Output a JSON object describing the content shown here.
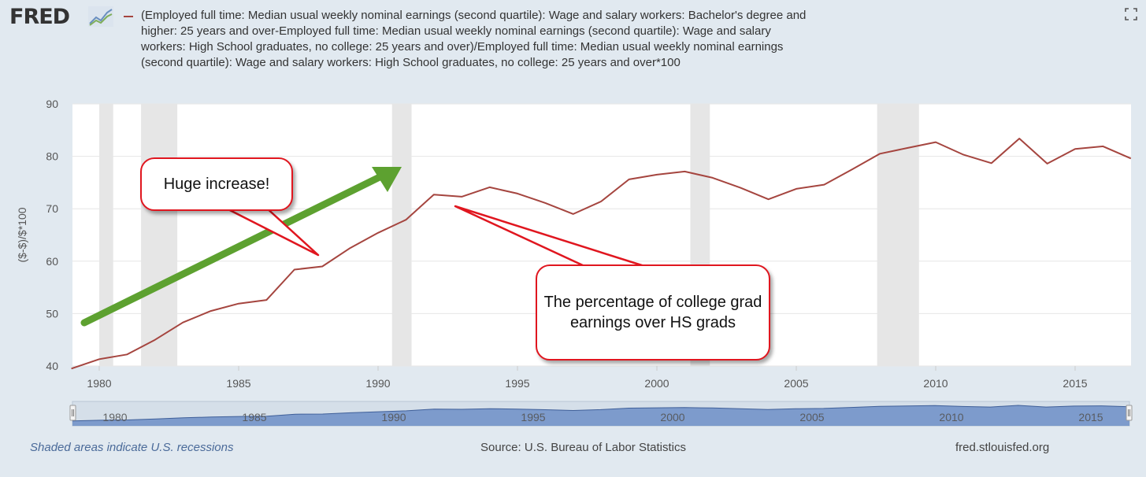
{
  "header": {
    "logo_text": "FRED",
    "legend_text": "(Employed full time: Median usual weekly nominal earnings (second quartile): Wage and salary workers: Bachelor's degree and higher: 25 years and over-Employed full time: Median usual weekly nominal earnings (second quartile): Wage and salary workers: High School graduates, no college: 25 years and over)/Employed full time: Median usual weekly nominal earnings (second quartile): Wage and salary workers: High School graduates, no college: 25 years and over*100",
    "series_color": "#a5453f"
  },
  "chart_data": {
    "type": "line",
    "ylabel": "($-$)/$*100",
    "ylim": [
      40,
      90
    ],
    "yticks": [
      40,
      50,
      60,
      70,
      80,
      90
    ],
    "xlim": [
      1979,
      2017
    ],
    "xticks": [
      1980,
      1985,
      1990,
      1995,
      2000,
      2005,
      2010,
      2015
    ],
    "grid": true,
    "x": [
      1979,
      1980,
      1981,
      1982,
      1983,
      1984,
      1985,
      1986,
      1987,
      1988,
      1989,
      1990,
      1991,
      1992,
      1993,
      1994,
      1995,
      1996,
      1997,
      1998,
      1999,
      2000,
      2001,
      2002,
      2003,
      2004,
      2005,
      2006,
      2007,
      2008,
      2009,
      2010,
      2011,
      2012,
      2013,
      2014,
      2015,
      2016,
      2017
    ],
    "series": [
      {
        "values": [
          39.5,
          41.3,
          42.2,
          45.0,
          48.3,
          50.5,
          51.9,
          52.6,
          58.4,
          59.0,
          62.5,
          65.4,
          67.9,
          72.7,
          72.3,
          74.1,
          72.9,
          71.1,
          69.0,
          71.4,
          75.6,
          76.5,
          77.1,
          75.9,
          74.0,
          71.8,
          73.8,
          74.6,
          77.5,
          80.5,
          81.6,
          82.7,
          80.3,
          78.7,
          83.4,
          78.6,
          81.4,
          81.9,
          79.6
        ]
      }
    ],
    "recessions": [
      [
        1980.0,
        1980.5
      ],
      [
        1981.5,
        1982.8
      ],
      [
        1990.5,
        1991.2
      ],
      [
        2001.2,
        2001.9
      ],
      [
        2007.9,
        2009.4
      ]
    ],
    "annotations": [
      {
        "text": "Huge increase!"
      },
      {
        "text": "The percentage of college grad earnings over HS grads"
      }
    ],
    "navigator_labels": [
      "1980",
      "1985",
      "1990",
      "1995",
      "2000",
      "2005",
      "2010",
      "2015"
    ]
  },
  "footer": {
    "recession_note": "Shaded areas indicate U.S. recessions",
    "source": "Source: U.S. Bureau of Labor Statistics",
    "site": "fred.stlouisfed.org"
  }
}
